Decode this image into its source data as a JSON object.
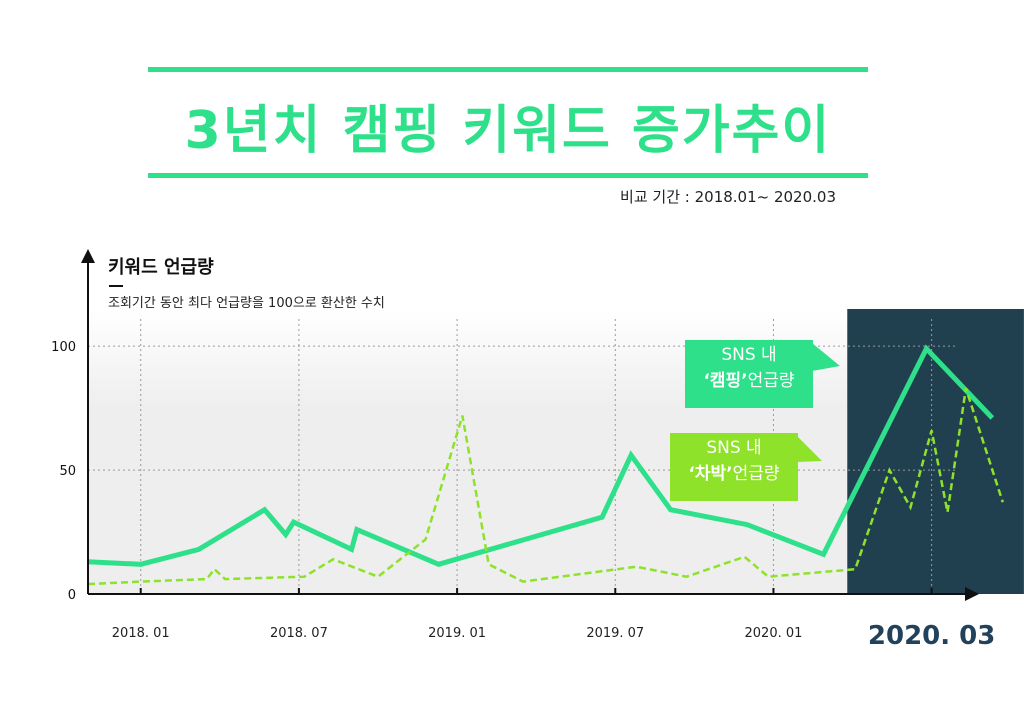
{
  "title": "3년치 캠핑 키워드 증가추이",
  "compare_period": "비교 기간 : 2018.01~ 2020.03",
  "colors": {
    "accent_green": "#2ee08a",
    "lime": "#8ee22a",
    "highlight_bg": "#203f4f",
    "plot_bg": "#eeeeee",
    "date_highlight": "#22415a"
  },
  "chart_data": {
    "type": "line",
    "ylabel": "키워드 언급량",
    "ynote": "조회기간 동안 최다 언급량을 100으로 환산한 수치",
    "ylim": [
      0,
      115
    ],
    "yticks": [
      "0",
      "50",
      "100"
    ],
    "ytick_values": [
      0,
      50,
      100
    ],
    "xlim": [
      -2,
      31
    ],
    "xticks": [
      {
        "label": "2018. 01",
        "x": 0
      },
      {
        "label": "2018. 07",
        "x": 6
      },
      {
        "label": "2019. 01",
        "x": 12
      },
      {
        "label": "2019. 07",
        "x": 18
      },
      {
        "label": "2020. 01",
        "x": 24
      },
      {
        "label": "2020. 03",
        "x": 30,
        "emphasis": true
      }
    ],
    "grid": true,
    "highlight_region": [
      26.8,
      33.5
    ],
    "series": [
      {
        "name": "'캠핑'언급량",
        "style": "solid",
        "color": "#2ee08a",
        "points": [
          [
            -2,
            13
          ],
          [
            0,
            12
          ],
          [
            2.2,
            18
          ],
          [
            4.7,
            34
          ],
          [
            5.5,
            24
          ],
          [
            5.8,
            29
          ],
          [
            8,
            18
          ],
          [
            8.2,
            26
          ],
          [
            11.3,
            12
          ],
          [
            17.5,
            31
          ],
          [
            18.6,
            56
          ],
          [
            20.1,
            34
          ],
          [
            23,
            28
          ],
          [
            25.9,
            16
          ],
          [
            29.8,
            99
          ],
          [
            32.3,
            71
          ]
        ]
      },
      {
        "name": "'차박'언급량",
        "style": "dashed",
        "color": "#8ee22a",
        "points": [
          [
            -2,
            4
          ],
          [
            0,
            5
          ],
          [
            2.5,
            6
          ],
          [
            2.8,
            10
          ],
          [
            3.2,
            6
          ],
          [
            6.2,
            7
          ],
          [
            7.3,
            14
          ],
          [
            9,
            7
          ],
          [
            10.8,
            22
          ],
          [
            12.2,
            72
          ],
          [
            13.2,
            12
          ],
          [
            14.5,
            5
          ],
          [
            18.8,
            11
          ],
          [
            20.7,
            7
          ],
          [
            22.9,
            15
          ],
          [
            23.8,
            7
          ],
          [
            27.1,
            10
          ],
          [
            28.4,
            50
          ],
          [
            29.2,
            35
          ],
          [
            30,
            66
          ],
          [
            30.6,
            33
          ],
          [
            31.3,
            83
          ],
          [
            32.7,
            37
          ]
        ]
      }
    ],
    "callouts": [
      {
        "line1": "SNS 내",
        "quote": "‘캠핑’",
        "rest": "언급량"
      },
      {
        "line1": "SNS 내",
        "quote": "‘차박’",
        "rest": "언급량"
      }
    ]
  }
}
